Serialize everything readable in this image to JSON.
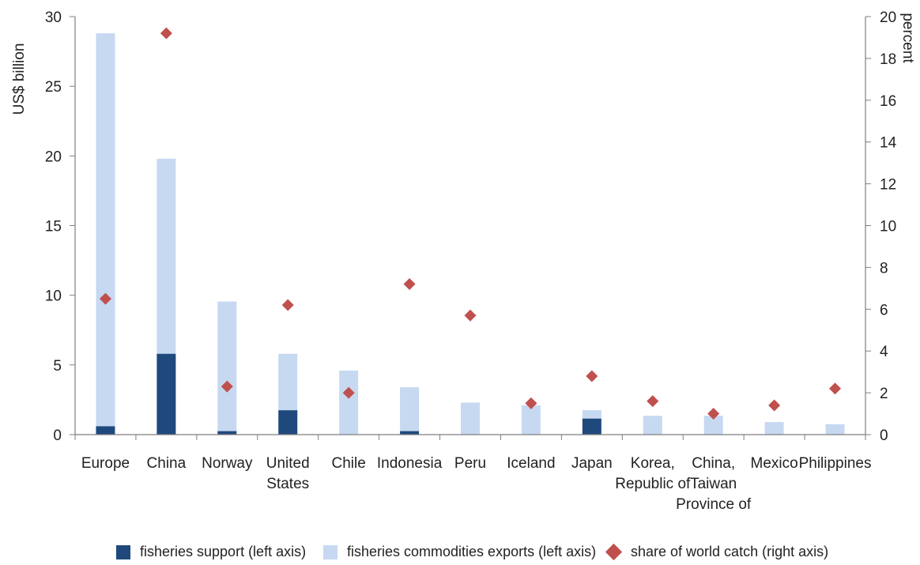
{
  "chart_data": {
    "type": "bar",
    "stacked": true,
    "categories": [
      "Europe",
      "China",
      "Norway",
      "United States",
      "Chile",
      "Indonesia",
      "Peru",
      "Iceland",
      "Japan",
      "Korea, Republic of",
      "China, Taiwan Province of",
      "Mexico",
      "Philippines"
    ],
    "category_lines": [
      [
        "Europe"
      ],
      [
        "China"
      ],
      [
        "Norway"
      ],
      [
        "United",
        "States"
      ],
      [
        "Chile"
      ],
      [
        "Indonesia"
      ],
      [
        "Peru"
      ],
      [
        "Iceland"
      ],
      [
        "Japan"
      ],
      [
        "Korea,",
        "Republic of"
      ],
      [
        "China,",
        "Taiwan",
        "Province of"
      ],
      [
        "Mexico"
      ],
      [
        "Philippines"
      ]
    ],
    "series": [
      {
        "name": "fisheries support (left axis)",
        "axis": "left",
        "kind": "bar",
        "color": "#1f497d",
        "values": [
          0.6,
          5.8,
          0.25,
          1.75,
          0,
          0.25,
          0,
          0,
          1.15,
          0,
          0,
          0,
          0
        ]
      },
      {
        "name": "fisheries commodities exports (left axis)",
        "axis": "left",
        "kind": "bar",
        "color": "#c6d9f1",
        "values": [
          28.2,
          14.0,
          9.3,
          4.05,
          4.6,
          3.15,
          2.3,
          2.1,
          0.6,
          1.35,
          1.35,
          0.9,
          0.75
        ]
      },
      {
        "name": "share of world catch (right axis)",
        "axis": "right",
        "kind": "marker",
        "marker": "diamond",
        "color": "#c0504d",
        "values": [
          6.5,
          19.2,
          2.3,
          6.2,
          2.0,
          7.2,
          5.7,
          1.5,
          2.8,
          1.6,
          1.0,
          1.4,
          2.2
        ]
      }
    ],
    "ylabel": "US$ billion",
    "y2label": "percent",
    "ylim": [
      0,
      30
    ],
    "y2lim": [
      0,
      20
    ],
    "yticks": [
      "0",
      "5",
      "10",
      "15",
      "20",
      "25",
      "30"
    ],
    "y2ticks": [
      "0",
      "2",
      "4",
      "6",
      "8",
      "10",
      "12",
      "14",
      "16",
      "18",
      "20"
    ],
    "grid": false,
    "legend_position": "bottom"
  }
}
